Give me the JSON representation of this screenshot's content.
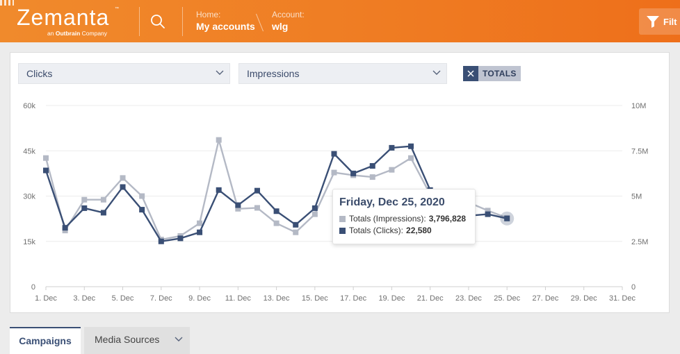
{
  "header": {
    "logo_text": "Zemanta",
    "logo_tm": "™",
    "logo_sub_prefix": "an",
    "logo_sub_brand": "Outbrain",
    "logo_sub_suffix": "Company",
    "home_label": "Home:",
    "home_value": "My accounts",
    "account_label": "Account:",
    "account_value": "wlg",
    "filter_label": "Filt"
  },
  "controls": {
    "metric_primary": "Clicks",
    "metric_secondary": "Impressions",
    "totals_label": "TOTALS"
  },
  "chart_data": {
    "type": "line",
    "title": "",
    "x": [
      "1. Dec",
      "2. Dec",
      "3. Dec",
      "4. Dec",
      "5. Dec",
      "6. Dec",
      "7. Dec",
      "8. Dec",
      "9. Dec",
      "10. Dec",
      "11. Dec",
      "12. Dec",
      "13. Dec",
      "14. Dec",
      "15. Dec",
      "16. Dec",
      "17. Dec",
      "18. Dec",
      "19. Dec",
      "20. Dec",
      "21. Dec",
      "22. Dec",
      "23. Dec",
      "24. Dec",
      "25. Dec"
    ],
    "x_tick_labels": [
      "1. Dec",
      "3. Dec",
      "5. Dec",
      "7. Dec",
      "9. Dec",
      "11. Dec",
      "13. Dec",
      "15. Dec",
      "17. Dec",
      "19. Dec",
      "21. Dec",
      "23. Dec",
      "25. Dec",
      "27. Dec",
      "29. Dec",
      "31. Dec"
    ],
    "x_days_total": 31,
    "y_left": {
      "ticks": [
        "0",
        "15k",
        "30k",
        "45k",
        "60k"
      ],
      "range": [
        0,
        60000
      ]
    },
    "y_right": {
      "ticks": [
        "0",
        "2.5M",
        "5M",
        "7.5M",
        "10M"
      ],
      "range": [
        0,
        10000000
      ]
    },
    "grid": true,
    "series": [
      {
        "name": "Totals (Impressions)",
        "axis": "right",
        "color": "#b4b9c5",
        "values": [
          7100000,
          3100000,
          4800000,
          4800000,
          6000000,
          5000000,
          2600000,
          2800000,
          3500000,
          8100000,
          4300000,
          4350000,
          3500000,
          3000000,
          4000000,
          6300000,
          6150000,
          6050000,
          6450000,
          7100000,
          5100000,
          4100000,
          4650000,
          4200000,
          3796828
        ]
      },
      {
        "name": "Totals (Clicks)",
        "axis": "left",
        "color": "#3a4f75",
        "values": [
          38500,
          19500,
          26000,
          24500,
          33000,
          25500,
          15000,
          16000,
          18000,
          32000,
          27000,
          31800,
          25000,
          20500,
          26000,
          44000,
          37500,
          40000,
          46000,
          46500,
          32000,
          23800,
          23500,
          24000,
          22580
        ]
      }
    ]
  },
  "tooltip": {
    "title": "Friday, Dec 25, 2020",
    "rows": [
      {
        "label": "Totals (Impressions):",
        "value": "3,796,828",
        "color": "#b4b9c5"
      },
      {
        "label": "Totals (Clicks):",
        "value": "22,580",
        "color": "#3a4f75"
      }
    ]
  },
  "tabs": [
    {
      "label": "Campaigns",
      "active": true
    },
    {
      "label": "Media Sources",
      "active": false
    }
  ]
}
